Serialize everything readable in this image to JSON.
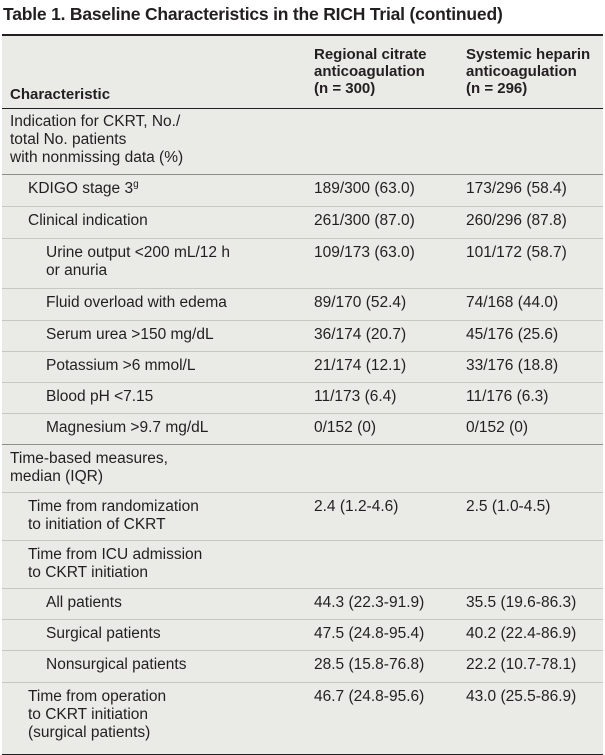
{
  "caption": "Table 1. Baseline Characteristics in the RICH Trial (continued)",
  "header": {
    "characteristic": "Characteristic",
    "citrate": [
      "Regional citrate",
      "anticoagulation",
      "(n = 300)"
    ],
    "heparin": [
      "Systemic heparin",
      "anticoagulation",
      "(n = 296)"
    ]
  },
  "rows": [
    {
      "label": [
        "Indication for CKRT, No./",
        "total No. patients",
        "with nonmissing data (%)"
      ],
      "citrate": "",
      "heparin": ""
    },
    {
      "label": [
        "KDIGO stage 3"
      ],
      "sup": "g",
      "citrate": "189/300 (63.0)",
      "heparin": "173/296 (58.4)"
    },
    {
      "label": [
        "Clinical indication"
      ],
      "citrate": "261/300 (87.0)",
      "heparin": "260/296 (87.8)"
    },
    {
      "label": [
        "Urine output <200 mL/12 h",
        "or anuria"
      ],
      "citrate": "109/173 (63.0)",
      "heparin": "101/172 (58.7)"
    },
    {
      "label": [
        "Fluid overload with edema"
      ],
      "citrate": "89/170 (52.4)",
      "heparin": "74/168 (44.0)"
    },
    {
      "label": [
        "Serum urea >150 mg/dL"
      ],
      "citrate": "36/174 (20.7)",
      "heparin": "45/176 (25.6)"
    },
    {
      "label": [
        "Potassium >6 mmol/L"
      ],
      "citrate": "21/174 (12.1)",
      "heparin": "33/176 (18.8)"
    },
    {
      "label": [
        "Blood pH <7.15"
      ],
      "citrate": "11/173 (6.4)",
      "heparin": "11/176 (6.3)"
    },
    {
      "label": [
        "Magnesium >9.7 mg/dL"
      ],
      "citrate": "0/152 (0)",
      "heparin": "0/152 (0)"
    },
    {
      "label": [
        "Time-based measures,",
        "median (IQR)"
      ],
      "citrate": "",
      "heparin": ""
    },
    {
      "label": [
        "Time from randomization",
        "to initiation of CKRT"
      ],
      "citrate": "2.4 (1.2-4.6)",
      "heparin": "2.5 (1.0-4.5)"
    },
    {
      "label": [
        "Time from ICU admission",
        "to CKRT initiation"
      ],
      "citrate": "",
      "heparin": ""
    },
    {
      "label": [
        "All patients"
      ],
      "citrate": "44.3 (22.3-91.9)",
      "heparin": "35.5 (19.6-86.3)"
    },
    {
      "label": [
        "Surgical patients"
      ],
      "citrate": "47.5 (24.8-95.4)",
      "heparin": "40.2 (22.4-86.9)"
    },
    {
      "label": [
        "Nonsurgical patients"
      ],
      "citrate": "28.5 (15.8-76.8)",
      "heparin": "22.2 (10.7-78.1)"
    },
    {
      "label": [
        "Time from operation",
        "to CKRT initiation",
        "(surgical patients)"
      ],
      "citrate": "46.7 (24.8-95.6)",
      "heparin": "43.0 (25.5-86.9)"
    }
  ]
}
